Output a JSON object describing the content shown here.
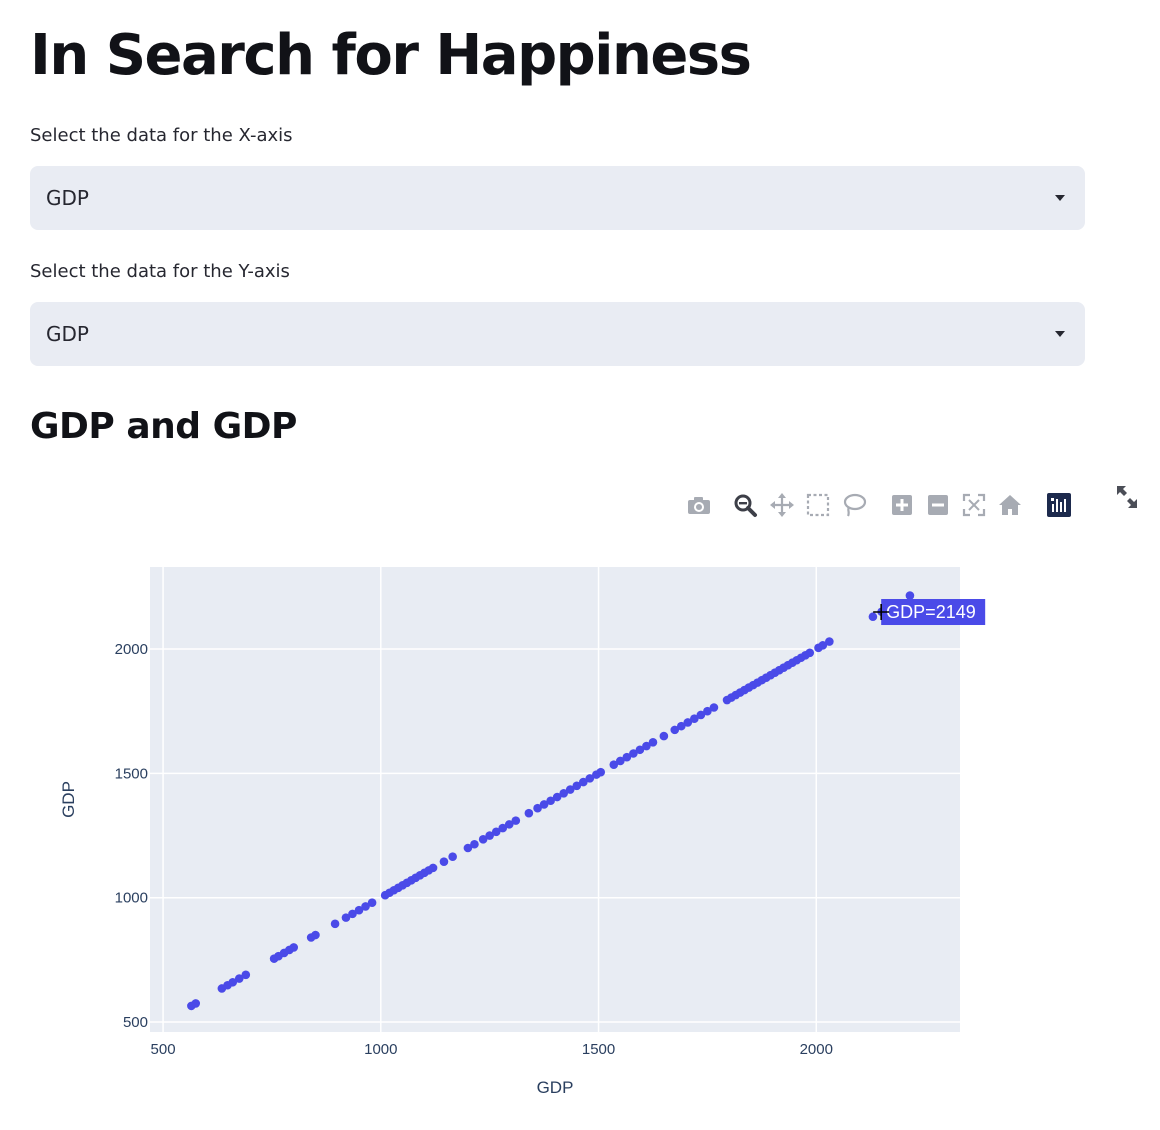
{
  "page": {
    "title": "In Search for Happiness"
  },
  "x_select": {
    "label": "Select the data for the X-axis",
    "value": "GDP"
  },
  "y_select": {
    "label": "Select the data for the Y-axis",
    "value": "GDP"
  },
  "section": {
    "title": "GDP and GDP"
  },
  "toolbar": {
    "icons": [
      "camera-icon",
      "zoom-icon",
      "pan-icon",
      "box-select-icon",
      "lasso-select-icon",
      "zoom-in-icon",
      "zoom-out-icon",
      "autoscale-icon",
      "reset-axes-icon",
      "plotly-logo-icon"
    ],
    "active": "zoom-icon",
    "fullscreen": "fullscreen-icon"
  },
  "colors": {
    "marker": "#4a4ae8",
    "plot_bg": "#e8ecf3",
    "grid": "#ffffff",
    "tooltip_bg": "#4a4ae8",
    "tooltip_text": "#ffffff"
  },
  "chart_data": {
    "type": "scatter",
    "xlabel": "GDP",
    "ylabel": "GDP",
    "xlim": [
      470,
      2330
    ],
    "ylim": [
      460,
      2330
    ],
    "xticks": [
      500,
      1000,
      1500,
      2000
    ],
    "yticks": [
      500,
      1000,
      1500,
      2000
    ],
    "grid": true,
    "series": [
      {
        "x": [
          565,
          575,
          635,
          648,
          660,
          675,
          690,
          755,
          765,
          778,
          790,
          800,
          840,
          850,
          895,
          920,
          935,
          950,
          965,
          980,
          1010,
          1020,
          1030,
          1040,
          1050,
          1060,
          1070,
          1080,
          1090,
          1100,
          1110,
          1120,
          1145,
          1165,
          1200,
          1215,
          1235,
          1250,
          1265,
          1280,
          1295,
          1310,
          1340,
          1360,
          1375,
          1390,
          1405,
          1420,
          1435,
          1450,
          1465,
          1480,
          1495,
          1505,
          1535,
          1550,
          1565,
          1580,
          1595,
          1610,
          1625,
          1650,
          1675,
          1690,
          1705,
          1720,
          1735,
          1750,
          1765,
          1795,
          1805,
          1815,
          1825,
          1835,
          1845,
          1855,
          1865,
          1875,
          1885,
          1895,
          1905,
          1915,
          1925,
          1935,
          1945,
          1955,
          1965,
          1975,
          1985,
          2005,
          2015,
          2030,
          2130,
          2150,
          2175,
          2215
        ],
        "y": [
          565,
          575,
          635,
          648,
          660,
          675,
          690,
          755,
          765,
          778,
          790,
          800,
          840,
          850,
          895,
          920,
          935,
          950,
          965,
          980,
          1010,
          1020,
          1030,
          1040,
          1050,
          1060,
          1070,
          1080,
          1090,
          1100,
          1110,
          1120,
          1145,
          1165,
          1200,
          1215,
          1235,
          1250,
          1265,
          1280,
          1295,
          1310,
          1340,
          1360,
          1375,
          1390,
          1405,
          1420,
          1435,
          1450,
          1465,
          1480,
          1495,
          1505,
          1535,
          1550,
          1565,
          1580,
          1595,
          1610,
          1625,
          1650,
          1675,
          1690,
          1705,
          1720,
          1735,
          1750,
          1765,
          1795,
          1805,
          1815,
          1825,
          1835,
          1845,
          1855,
          1865,
          1875,
          1885,
          1895,
          1905,
          1915,
          1925,
          1935,
          1945,
          1955,
          1965,
          1975,
          1985,
          2005,
          2015,
          2030,
          2130,
          2150,
          2175,
          2215
        ]
      }
    ],
    "hover": {
      "x": 2149,
      "y": 2149,
      "label": "GDP=2149"
    }
  }
}
